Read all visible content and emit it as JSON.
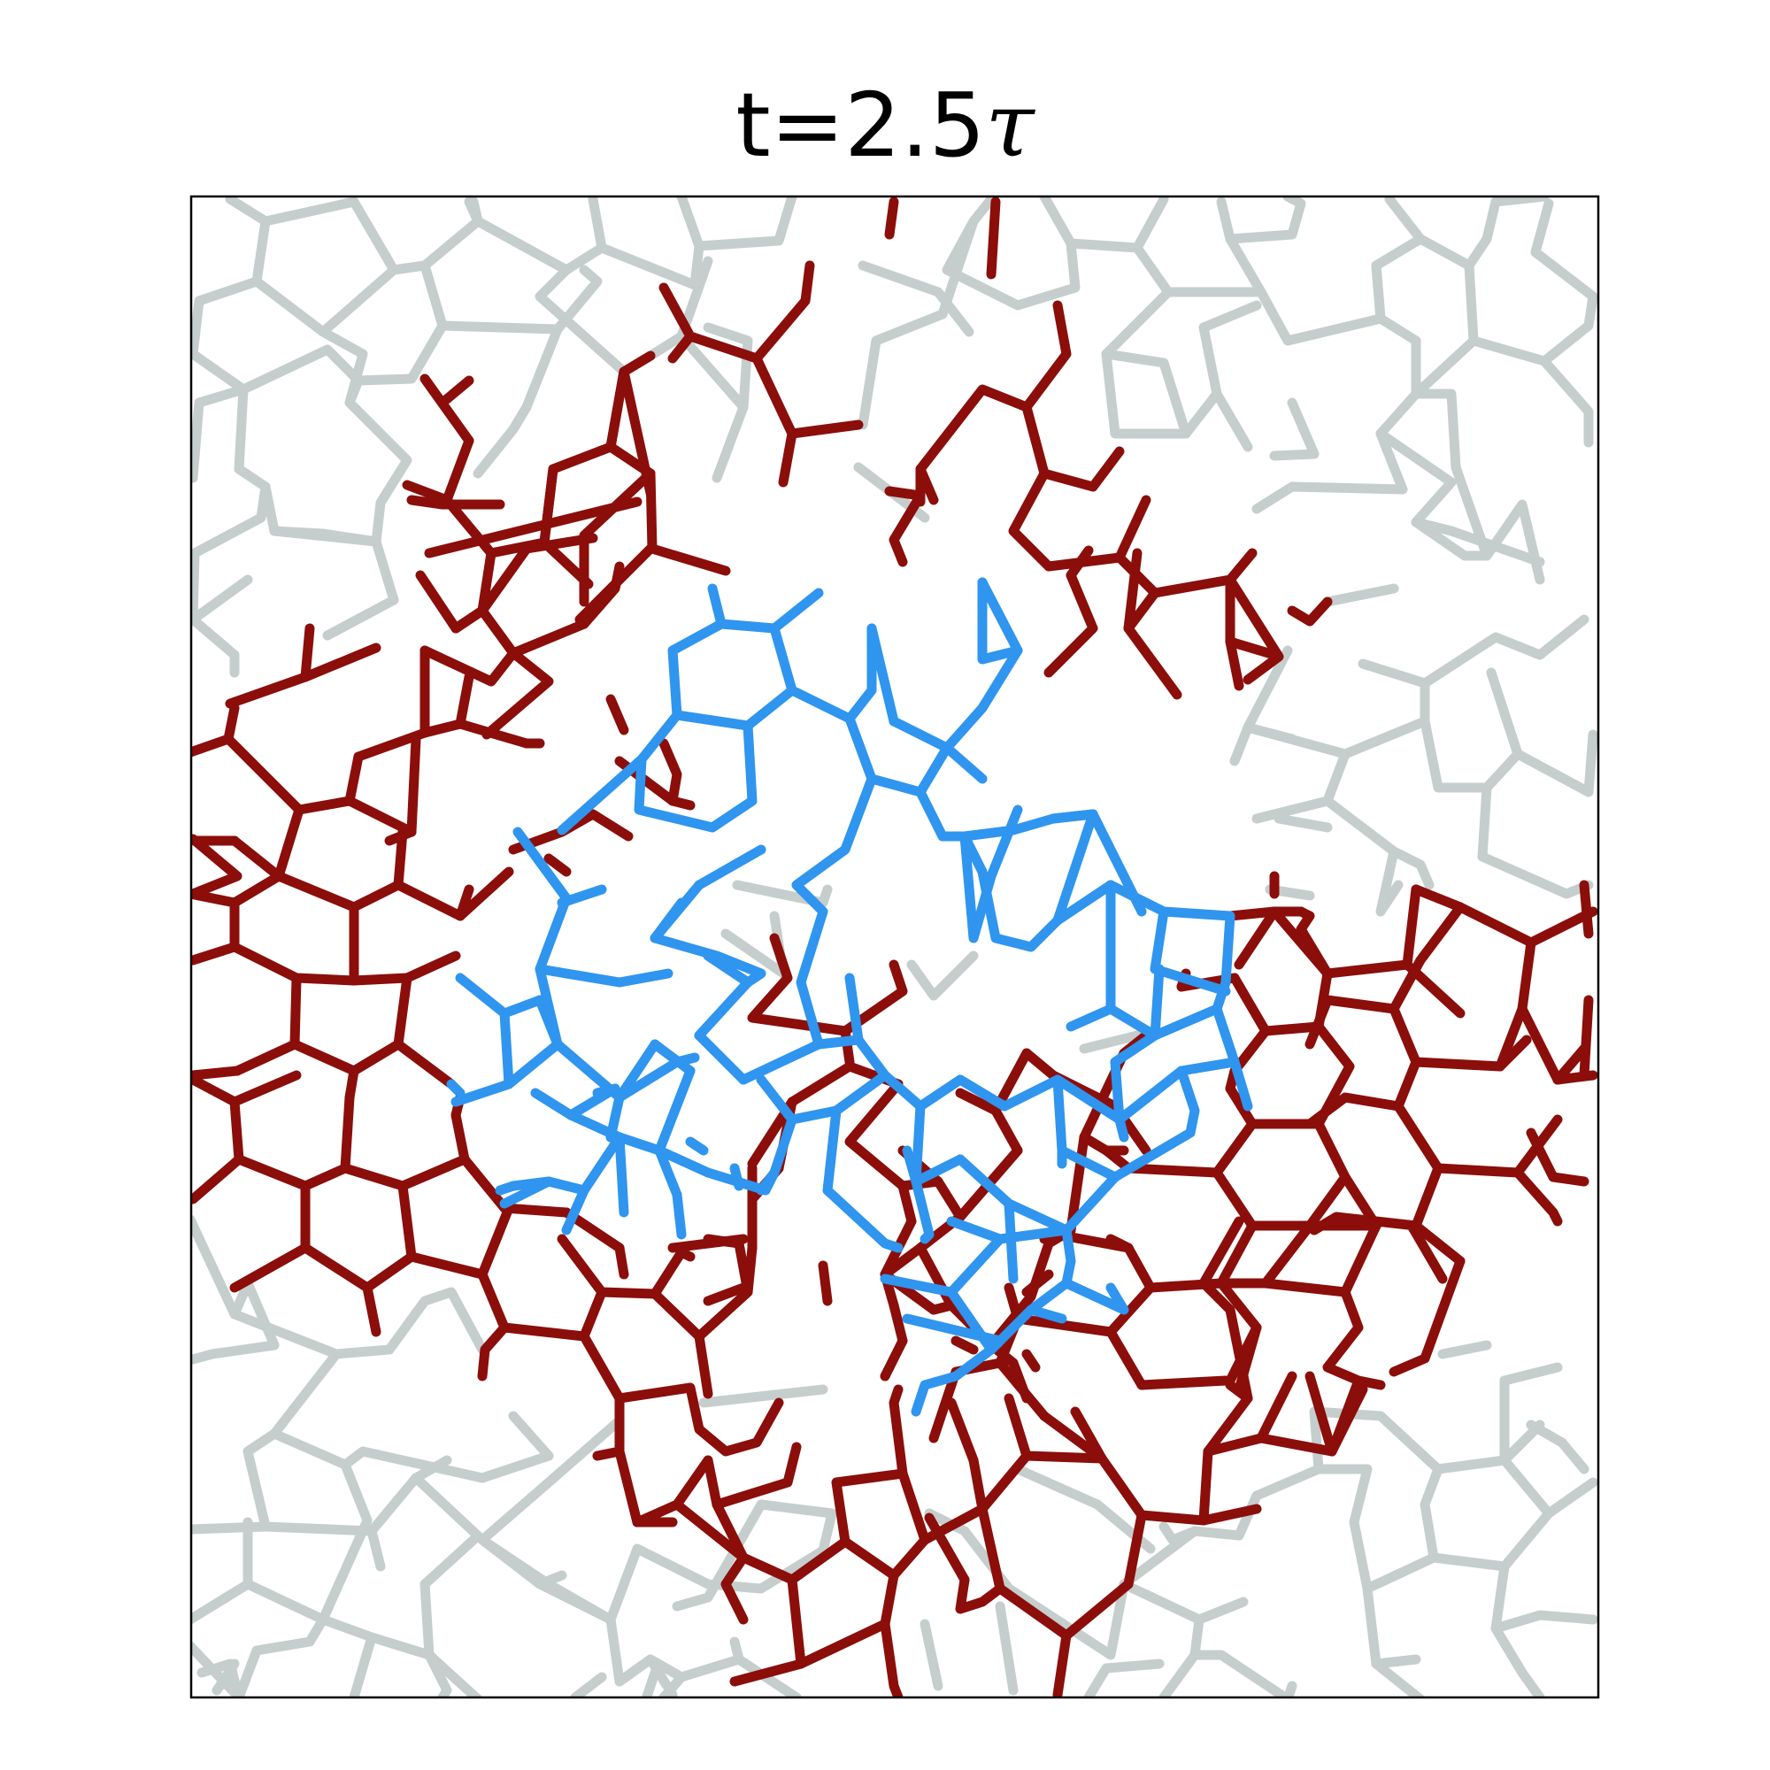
{
  "title": {
    "prefix": "t=2.5",
    "symbol": "τ"
  },
  "colors": {
    "background_cells": "#c5cecd",
    "boundary_cells": "#8b0e0a",
    "inner_cells": "#2f95ef",
    "frame": "#000000"
  },
  "legend": []
}
